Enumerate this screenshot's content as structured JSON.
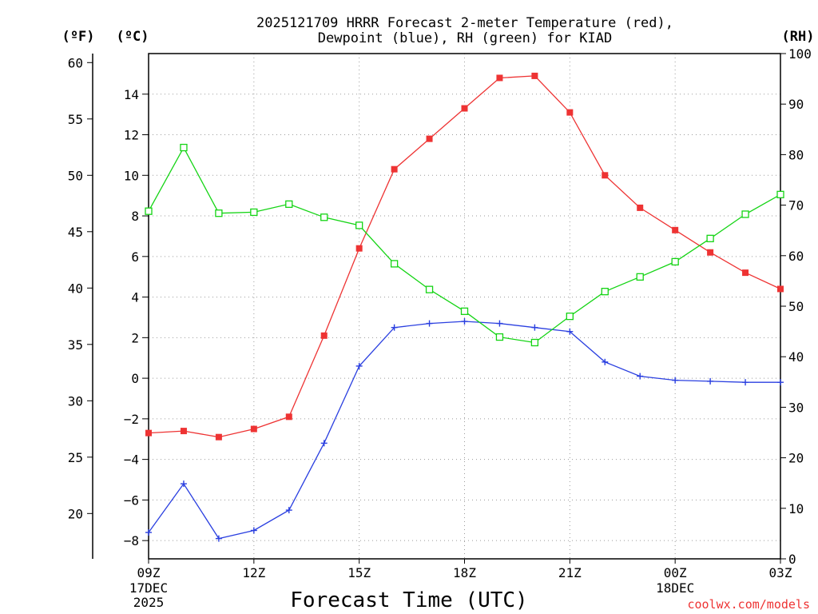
{
  "chart_data": {
    "type": "line",
    "title_line1": "2025121709 HRRR Forecast 2-meter Temperature (red),",
    "title_line2": "Dewpoint (blue), RH (green) for KIAD",
    "xlabel": "Forecast Time (UTC)",
    "credit": "coolwx.com/models",
    "colors": {
      "temperature": "#ee3333",
      "dewpoint": "#2a3fe0",
      "rh": "#14d414"
    },
    "units": {
      "fahrenheit": "(ºF)",
      "celsius": "(ºC)",
      "rh": "(RH)"
    },
    "x_hours": [
      0,
      1,
      2,
      3,
      4,
      5,
      6,
      7,
      8,
      9,
      10,
      11,
      12,
      13,
      14,
      15,
      16,
      17,
      18
    ],
    "x_ticks": [
      {
        "hour": 0,
        "label": "09Z",
        "sub1": "17DEC",
        "sub2": "2025"
      },
      {
        "hour": 3,
        "label": "12Z"
      },
      {
        "hour": 6,
        "label": "15Z"
      },
      {
        "hour": 9,
        "label": "18Z"
      },
      {
        "hour": 12,
        "label": "21Z"
      },
      {
        "hour": 15,
        "label": "00Z",
        "sub1": "18DEC"
      },
      {
        "hour": 18,
        "label": "03Z"
      }
    ],
    "celsius_ylim": [
      -8.9,
      16
    ],
    "celsius_ticks": [
      14,
      12,
      10,
      8,
      6,
      4,
      2,
      0,
      -2,
      -4,
      -6,
      -8
    ],
    "fahrenheit_ticks": [
      60,
      55,
      50,
      45,
      40,
      35,
      30,
      25,
      20
    ],
    "rh_ylim": [
      0,
      100
    ],
    "rh_ticks": [
      100,
      90,
      80,
      70,
      60,
      50,
      40,
      30,
      20,
      10,
      0
    ],
    "series": [
      {
        "name": "Temperature (°C)",
        "axis": "celsius",
        "marker": "filled-square",
        "values": [
          -2.7,
          -2.6,
          -2.9,
          -2.5,
          -1.9,
          2.1,
          6.4,
          10.3,
          11.8,
          13.3,
          14.8,
          14.9,
          13.1,
          10.0,
          8.4,
          7.3,
          6.2,
          5.2,
          4.4
        ]
      },
      {
        "name": "Dewpoint (°C)",
        "axis": "celsius",
        "marker": "plus",
        "values": [
          -7.6,
          -5.2,
          -7.9,
          -7.5,
          -6.5,
          -3.2,
          0.6,
          2.5,
          2.7,
          2.8,
          2.7,
          2.5,
          2.3,
          0.8,
          0.1,
          -0.1,
          -0.15,
          -0.2,
          -0.2
        ]
      },
      {
        "name": "RH (%)",
        "axis": "rh",
        "marker": "open-square",
        "values": [
          68.8,
          81.4,
          68.4,
          68.6,
          70.2,
          67.6,
          66.0,
          58.4,
          53.3,
          49.0,
          43.9,
          42.8,
          48.0,
          52.9,
          55.8,
          58.8,
          63.4,
          68.2,
          72.1
        ]
      }
    ]
  }
}
